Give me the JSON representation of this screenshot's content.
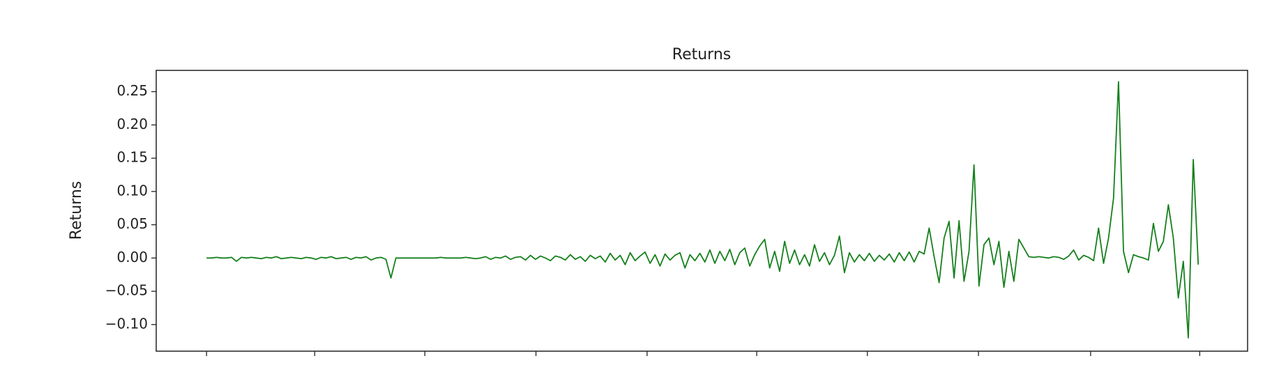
{
  "chart_data": {
    "type": "line",
    "title": "Returns",
    "y_label": "Returns",
    "color": "#15801c",
    "grid": false,
    "xlim": [
      -10.1,
      208.9
    ],
    "xticks": [
      0,
      21.7,
      43.8,
      66.1,
      88.4,
      110.4,
      132.6,
      154.9,
      177.4,
      199.3
    ],
    "ylim": [
      -0.14,
      0.282
    ],
    "yticks": [
      {
        "value": -0.1,
        "label": "−0.10"
      },
      {
        "value": -0.05,
        "label": "−0.05"
      },
      {
        "value": 0,
        "label": "0.00"
      },
      {
        "value": 0.05,
        "label": "0.05"
      },
      {
        "value": 0.1,
        "label": "0.10"
      },
      {
        "value": 0.15,
        "label": "0.15"
      },
      {
        "value": 0.2,
        "label": "0.20"
      },
      {
        "value": 0.25,
        "label": "0.25"
      }
    ],
    "values": [
      0,
      0,
      0.001,
      0,
      0,
      0.001,
      -0.005,
      0.001,
      0,
      0.001,
      0,
      -0.001,
      0.001,
      0,
      0.002,
      -0.001,
      0,
      0.001,
      0,
      -0.001,
      0.001,
      0,
      -0.002,
      0.001,
      0,
      0.002,
      -0.001,
      0,
      0.001,
      -0.002,
      0.001,
      0,
      0.002,
      -0.003,
      0,
      0.001,
      -0.002,
      -0.03,
      0,
      0,
      0,
      0,
      0,
      0,
      0,
      0,
      0,
      0.001,
      0,
      0,
      0,
      0,
      0.001,
      0,
      -0.001,
      0,
      0.002,
      -0.002,
      0.001,
      0,
      0.003,
      -0.002,
      0.001,
      0.002,
      -0.003,
      0.004,
      -0.002,
      0.003,
      0,
      -0.004,
      0.003,
      0.001,
      -0.003,
      0.005,
      -0.002,
      0.002,
      -0.005,
      0.004,
      -0.001,
      0.003,
      -0.006,
      0.007,
      -0.003,
      0.004,
      -0.01,
      0.008,
      -0.004,
      0.003,
      0.009,
      -0.008,
      0.005,
      -0.012,
      0.006,
      -0.003,
      0.004,
      0.008,
      -0.015,
      0.005,
      -0.004,
      0.007,
      -0.006,
      0.012,
      -0.008,
      0.01,
      -0.004,
      0.013,
      -0.01,
      0.008,
      0.015,
      -0.012,
      0.005,
      0.018,
      0.028,
      -0.015,
      0.01,
      -0.02,
      0.025,
      -0.008,
      0.012,
      -0.01,
      0.005,
      -0.012,
      0.02,
      -0.005,
      0.008,
      -0.01,
      0.004,
      0.033,
      -0.022,
      0.008,
      -0.006,
      0.005,
      -0.004,
      0.007,
      -0.005,
      0.004,
      -0.003,
      0.006,
      -0.006,
      0.008,
      -0.004,
      0.009,
      -0.006,
      0.01,
      0.006,
      0.045,
      0.002,
      -0.037,
      0.03,
      0.055,
      -0.03,
      0.056,
      -0.035,
      0.01,
      0.14,
      -0.042,
      0.02,
      0.03,
      -0.01,
      0.025,
      -0.044,
      0.01,
      -0.035,
      0.028,
      0.015,
      0.002,
      0.001,
      0.002,
      0.001,
      0,
      0.002,
      0.001,
      -0.002,
      0.003,
      0.012,
      -0.003,
      0.004,
      0.001,
      -0.004,
      0.045,
      -0.008,
      0.03,
      0.09,
      0.265,
      0.01,
      -0.022,
      0.005,
      0.002,
      0,
      -0.003,
      0.052,
      0.01,
      0.025,
      0.08,
      0.03,
      -0.06,
      -0.005,
      -0.12,
      0.148,
      -0.01
    ]
  }
}
